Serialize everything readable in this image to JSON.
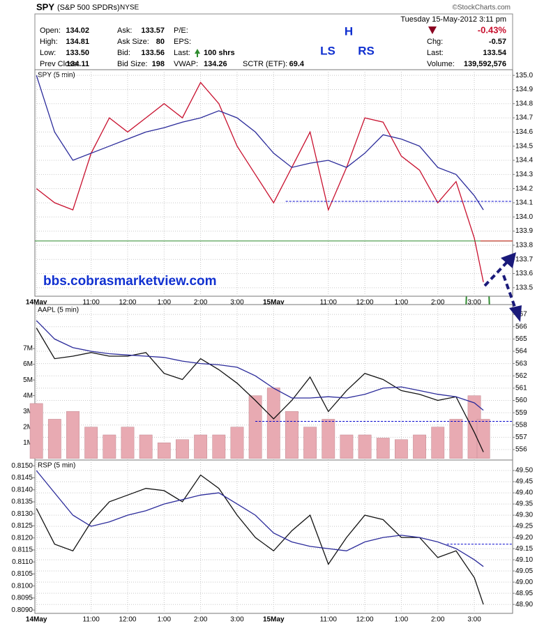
{
  "header": {
    "symbol": "SPY",
    "name": "(S&P 500 SPDRs)",
    "exchange": "NYSE",
    "date": "Tuesday 15-May-2012 3:11 pm",
    "source": "©StockCharts.com",
    "change_pct": "-0.43%",
    "columns": [
      [
        {
          "label": "Open:",
          "value": "134.02"
        },
        {
          "label": "High:",
          "value": "134.81"
        },
        {
          "label": "Low:",
          "value": "133.50"
        },
        {
          "label": "Prev Close:",
          "value": "134.11"
        }
      ],
      [
        {
          "label": "Ask:",
          "value": "133.57"
        },
        {
          "label": "Ask Size:",
          "value": "80"
        },
        {
          "label": "Bid:",
          "value": "133.56"
        },
        {
          "label": "Bid Size:",
          "value": "198"
        }
      ],
      [
        {
          "label": "P/E:"
        },
        {
          "label": "EPS:"
        },
        {
          "label": "Last:",
          "value": "100 shrs"
        },
        {
          "label": "VWAP:",
          "value": "134.26"
        }
      ],
      [
        {
          "label": "SCTR (ETF):",
          "value": "69.4"
        }
      ]
    ],
    "right": [
      {
        "label": "Chg:",
        "value": "-0.57"
      },
      {
        "label": "Last:",
        "value": "133.54"
      },
      {
        "label": "Volume:",
        "value": "139,592,576"
      }
    ]
  },
  "chart_data": [
    {
      "type": "line",
      "title": "SPY (5 min)",
      "grid": true,
      "annotations": [
        "H",
        "LS",
        "RS",
        "bbs.cobrasmarketview.com"
      ],
      "x": [
        0,
        6,
        12,
        18,
        24,
        30,
        36,
        42,
        48,
        54,
        60,
        66,
        72,
        78,
        84,
        90,
        96,
        102,
        108,
        114,
        120,
        126,
        132,
        138,
        144,
        147
      ],
      "xlim": [
        -0.5,
        156.6
      ],
      "xticks": [
        {
          "value": 0,
          "label": "14May"
        },
        {
          "value": 18,
          "label": "11:00"
        },
        {
          "value": 30,
          "label": "12:00"
        },
        {
          "value": 42,
          "label": "1:00"
        },
        {
          "value": 54,
          "label": "2:00"
        },
        {
          "value": 66,
          "label": "3:00"
        },
        {
          "value": 78,
          "label": "15May"
        },
        {
          "value": 96,
          "label": "11:00"
        },
        {
          "value": 108,
          "label": "12:00"
        },
        {
          "value": 120,
          "label": "1:00"
        },
        {
          "value": 132,
          "label": "2:00"
        },
        {
          "value": 144,
          "label": "3:00"
        }
      ],
      "ylim": [
        133.44,
        135.04
      ],
      "yticks": [
        {
          "value": 135.0,
          "label": "135.0"
        },
        134.9,
        134.8,
        134.7,
        134.6,
        134.5,
        134.4,
        134.3,
        134.2,
        134.1,
        {
          "value": 134.0,
          "label": "134.0"
        },
        133.9,
        133.8,
        133.7,
        133.6,
        133.5
      ],
      "series": [
        {
          "color": "#c8102e",
          "values": [
            134.2,
            134.1,
            134.05,
            134.45,
            134.7,
            134.6,
            134.7,
            134.8,
            134.7,
            134.95,
            134.8,
            134.5,
            134.3,
            134.1,
            134.35,
            134.6,
            134.05,
            134.35,
            134.7,
            134.67,
            134.43,
            134.33,
            134.1,
            134.25,
            133.85,
            133.54
          ]
        },
        {
          "color": "#2a2a9a",
          "values": [
            135.0,
            134.6,
            134.4,
            134.45,
            134.5,
            134.55,
            134.6,
            134.63,
            134.67,
            134.7,
            134.75,
            134.7,
            134.6,
            134.45,
            134.35,
            134.38,
            134.4,
            134.35,
            134.45,
            134.58,
            134.55,
            134.5,
            134.35,
            134.3,
            134.15,
            134.05
          ]
        }
      ],
      "hlines": [
        {
          "value": 134.11,
          "color": "#0000cc",
          "dash": true,
          "x_start": 82
        },
        {
          "value": 133.83,
          "color": "#2e8b2e",
          "dash": false,
          "x_start": -0.5
        },
        {
          "value": 133.83,
          "color": "#dd2222",
          "dash": false,
          "x_start": 146
        }
      ]
    },
    {
      "type": "line",
      "title": "AAPL (5 min)",
      "grid": true,
      "x": [
        0,
        6,
        12,
        18,
        24,
        30,
        36,
        42,
        48,
        54,
        60,
        66,
        72,
        78,
        84,
        90,
        96,
        102,
        108,
        114,
        120,
        126,
        132,
        138,
        144,
        147
      ],
      "xlim": [
        -0.5,
        156.6
      ],
      "ylim": [
        555.15,
        567.8
      ],
      "yticks": [
        567,
        566,
        565,
        564,
        563,
        562,
        561,
        560,
        559,
        558,
        557,
        556
      ],
      "y2lim": [
        -0.1,
        9.8
      ],
      "y2ticks": [
        {
          "value": 7,
          "label": "7M"
        },
        {
          "value": 6,
          "label": "6M"
        },
        {
          "value": 5,
          "label": "5M"
        },
        {
          "value": 4,
          "label": "4M"
        },
        {
          "value": 3,
          "label": "3M"
        },
        {
          "value": 2,
          "label": "2M"
        },
        {
          "value": 1,
          "label": "1M"
        }
      ],
      "series": [
        {
          "type": "bar",
          "axis": "y2",
          "color": "#e8aab2",
          "values": [
            3.5,
            2.5,
            3,
            2,
            1.5,
            2,
            1.5,
            1,
            1.2,
            1.5,
            1.5,
            2,
            4,
            4.5,
            3,
            2,
            2.5,
            1.5,
            1.5,
            1.3,
            1.2,
            1.5,
            2,
            2.5,
            4,
            2.5
          ]
        },
        {
          "color": "#111111",
          "values": [
            565.9,
            563.4,
            563.6,
            563.9,
            563.6,
            563.6,
            563.9,
            562.2,
            561.7,
            563.4,
            562.5,
            561.4,
            560,
            558.5,
            560,
            561.9,
            559.1,
            560.8,
            562.2,
            561.7,
            560.8,
            560.5,
            560,
            560.3,
            557.4,
            555.8
          ]
        },
        {
          "color": "#2a2a9a",
          "values": [
            566.5,
            565,
            564.3,
            564,
            563.8,
            563.7,
            563.6,
            563.5,
            563.2,
            563,
            562.9,
            562.7,
            562,
            561,
            560.2,
            560.2,
            560.3,
            560.2,
            560.5,
            561,
            561.1,
            560.8,
            560.5,
            560.3,
            559.8,
            559.2
          ]
        }
      ],
      "hlines": [
        {
          "value": 558.3,
          "color": "#0000cc",
          "dash": true,
          "x_start": 72
        }
      ]
    },
    {
      "type": "line",
      "title": "RSP (5 min)",
      "grid": true,
      "x": [
        0,
        6,
        12,
        18,
        24,
        30,
        36,
        42,
        48,
        54,
        60,
        66,
        72,
        78,
        84,
        90,
        96,
        102,
        108,
        114,
        120,
        126,
        132,
        138,
        144,
        147
      ],
      "xlim": [
        -0.5,
        156.6
      ],
      "xticks": [
        {
          "value": 0,
          "label": "14May"
        },
        {
          "value": 18,
          "label": "11:00"
        },
        {
          "value": 30,
          "label": "12:00"
        },
        {
          "value": 42,
          "label": "1:00"
        },
        {
          "value": 54,
          "label": "2:00"
        },
        {
          "value": 66,
          "label": "3:00"
        },
        {
          "value": 78,
          "label": "15May"
        },
        {
          "value": 96,
          "label": "11:00"
        },
        {
          "value": 108,
          "label": "12:00"
        },
        {
          "value": 120,
          "label": "1:00"
        },
        {
          "value": 132,
          "label": "2:00"
        },
        {
          "value": 144,
          "label": "3:00"
        }
      ],
      "ylim": [
        48.86,
        49.547
      ],
      "yticks": [
        {
          "value": 49.5,
          "label": "49.50"
        },
        49.45,
        {
          "value": 49.4,
          "label": "49.40"
        },
        49.35,
        {
          "value": 49.3,
          "label": "49.30"
        },
        49.25,
        {
          "value": 49.2,
          "label": "49.20"
        },
        49.15,
        {
          "value": 49.1,
          "label": "49.10"
        },
        49.05,
        {
          "value": 49.0,
          "label": "49.00"
        },
        48.95,
        {
          "value": 48.9,
          "label": "48.90"
        }
      ],
      "y2lim": [
        0.80886,
        0.81524
      ],
      "y2ticks": [
        {
          "value": 0.815,
          "label": "0.8150"
        },
        0.8145,
        {
          "value": 0.814,
          "label": "0.8140"
        },
        0.8135,
        {
          "value": 0.813,
          "label": "0.8130"
        },
        0.8125,
        {
          "value": 0.812,
          "label": "0.8120"
        },
        0.8115,
        {
          "value": 0.811,
          "label": "0.8110"
        },
        0.8105,
        {
          "value": 0.81,
          "label": "0.8100"
        },
        0.8095,
        {
          "value": 0.809,
          "label": "0.8090"
        }
      ],
      "series": [
        {
          "color": "#111111",
          "values": [
            49.33,
            49.17,
            49.14,
            49.27,
            49.36,
            49.39,
            49.42,
            49.41,
            49.36,
            49.48,
            49.42,
            49.3,
            49.2,
            49.14,
            49.23,
            49.3,
            49.08,
            49.2,
            49.3,
            49.28,
            49.2,
            49.2,
            49.11,
            49.14,
            49.02,
            48.9
          ]
        },
        {
          "color": "#2a2a9a",
          "values": [
            49.5,
            49.4,
            49.3,
            49.25,
            49.27,
            49.3,
            49.32,
            49.35,
            49.37,
            49.39,
            49.4,
            49.35,
            49.3,
            49.22,
            49.18,
            49.16,
            49.15,
            49.14,
            49.18,
            49.2,
            49.21,
            49.2,
            49.18,
            49.15,
            49.1,
            49.07
          ]
        }
      ],
      "hlines": [
        {
          "value": 49.17,
          "color": "#0000cc",
          "dash": true,
          "x_start": 135
        }
      ]
    }
  ]
}
